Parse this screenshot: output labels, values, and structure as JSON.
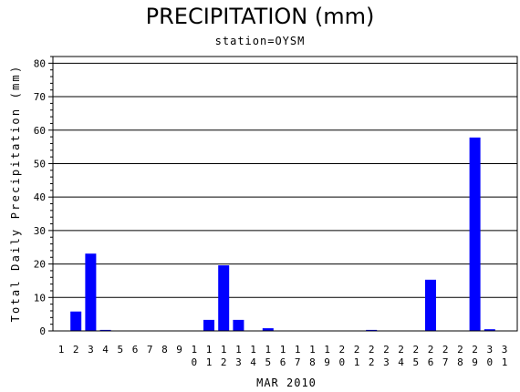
{
  "chart_data": {
    "type": "bar",
    "title": "PRECIPITATION (mm)",
    "subtitle": "station=OYSM",
    "xlabel": "MAR 2010",
    "ylabel": "Total Daily Precipitation (mm)",
    "ylim": [
      0,
      82
    ],
    "yticks": [
      0,
      10,
      20,
      30,
      40,
      50,
      60,
      70,
      80
    ],
    "grid": "horizontal",
    "bar_color": "#0000ff",
    "categories": [
      "1",
      "2",
      "3",
      "4",
      "5",
      "6",
      "7",
      "8",
      "9",
      "10",
      "11",
      "12",
      "13",
      "14",
      "15",
      "16",
      "17",
      "18",
      "19",
      "20",
      "21",
      "22",
      "23",
      "24",
      "25",
      "26",
      "27",
      "28",
      "29",
      "30",
      "31"
    ],
    "values": [
      0,
      5.8,
      23.1,
      0.3,
      0,
      0,
      0,
      0,
      0,
      0,
      3.3,
      19.6,
      3.3,
      0,
      0.8,
      0,
      0,
      0,
      0,
      0,
      0,
      0.3,
      0,
      0,
      0,
      15.3,
      0,
      0,
      57.8,
      0.5,
      0
    ]
  }
}
